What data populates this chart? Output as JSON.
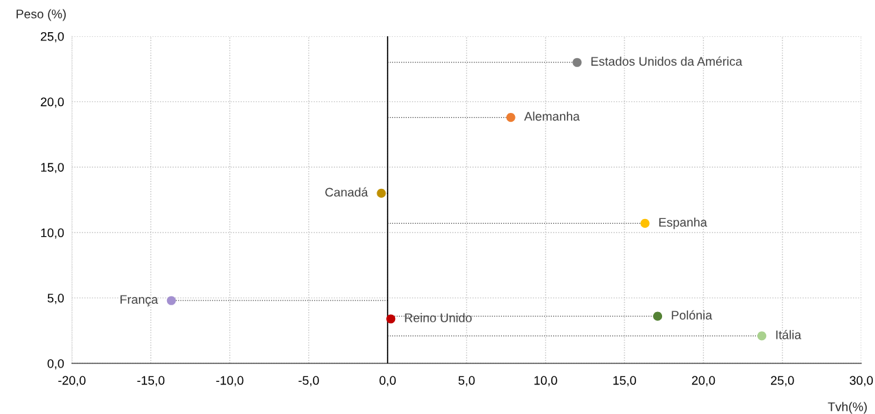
{
  "chart_data": {
    "type": "lollipop",
    "orientation": "horizontal",
    "xlabel": "Tvh(%)",
    "ylabel": "Peso (%)",
    "series": [
      {
        "name": "Estados Unidos da América",
        "color": "#7f7f7f",
        "x": [
          23.0
        ],
        "values": [
          12.0
        ]
      },
      {
        "name": "Alemanha",
        "color": "#ed7d31",
        "x": [
          18.8
        ],
        "values": [
          7.8
        ]
      },
      {
        "name": "Canadá",
        "color": "#bf9000",
        "x": [
          13.0
        ],
        "values": [
          -0.4
        ]
      },
      {
        "name": "Espanha",
        "color": "#ffc000",
        "x": [
          10.7
        ],
        "values": [
          16.3
        ]
      },
      {
        "name": "França",
        "color": "#a390d0",
        "x": [
          4.8
        ],
        "values": [
          -13.7
        ]
      },
      {
        "name": "Polónia",
        "color": "#548235",
        "x": [
          3.6
        ],
        "values": [
          17.1
        ]
      },
      {
        "name": "Reino Unido",
        "color": "#c00000",
        "x": [
          3.4
        ],
        "values": [
          0.2
        ]
      },
      {
        "name": "Itália",
        "color": "#a9d18e",
        "x": [
          2.1
        ],
        "values": [
          23.7
        ]
      }
    ],
    "xlim": [
      -20,
      30
    ],
    "xticks": [
      {
        "value": -20,
        "label": "-20,0"
      },
      {
        "value": -15,
        "label": "-15,0"
      },
      {
        "value": -10,
        "label": "-10,0"
      },
      {
        "value": -5,
        "label": "-5,0"
      },
      {
        "value": 0,
        "label": "0,0"
      },
      {
        "value": 5,
        "label": "5,0"
      },
      {
        "value": 10,
        "label": "10,0"
      },
      {
        "value": 15,
        "label": "15,0"
      },
      {
        "value": 20,
        "label": "20,0"
      },
      {
        "value": 25,
        "label": "25,0"
      },
      {
        "value": 30,
        "label": "30,0"
      }
    ],
    "ylim": [
      0,
      25
    ],
    "yticks": [
      {
        "value": 0,
        "label": "0,0"
      },
      {
        "value": 5,
        "label": "5,0"
      },
      {
        "value": 10,
        "label": "10,0"
      },
      {
        "value": 15,
        "label": "15,0"
      },
      {
        "value": 20,
        "label": "20,0"
      },
      {
        "value": 25,
        "label": "25,0"
      }
    ],
    "ref_lines": [
      {
        "axis": "x",
        "value": 0,
        "color": "#000000",
        "line_style": "solid"
      }
    ],
    "grid": true,
    "marker": "circle"
  }
}
